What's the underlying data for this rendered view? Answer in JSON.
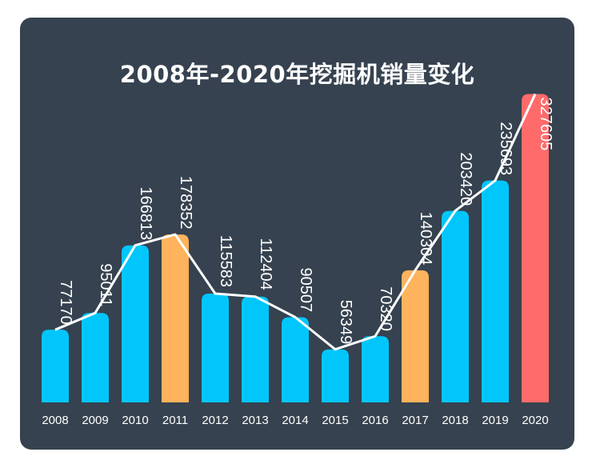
{
  "chart_data": {
    "type": "bar",
    "title": "2008年-2020年挖掘机销量变化",
    "categories": [
      "2008",
      "2009",
      "2010",
      "2011",
      "2012",
      "2013",
      "2014",
      "2015",
      "2016",
      "2017",
      "2018",
      "2019",
      "2020"
    ],
    "values": [
      77170,
      95011,
      166813,
      178352,
      115583,
      112404,
      90507,
      56349,
      70320,
      140304,
      203420,
      235693,
      327605
    ],
    "bar_colors": [
      "#00c6fb",
      "#00c6fb",
      "#00c6fb",
      "#ffb35c",
      "#00c6fb",
      "#00c6fb",
      "#00c6fb",
      "#00c6fb",
      "#00c6fb",
      "#ffb35c",
      "#00c6fb",
      "#00c6fb",
      "#ff6b6b"
    ],
    "line_overlay": true,
    "line_color": "#ffffff",
    "background": "#36424f",
    "xlabel": "",
    "ylabel": "",
    "ylim": [
      0,
      345000
    ],
    "grid": false,
    "legend": "none"
  }
}
